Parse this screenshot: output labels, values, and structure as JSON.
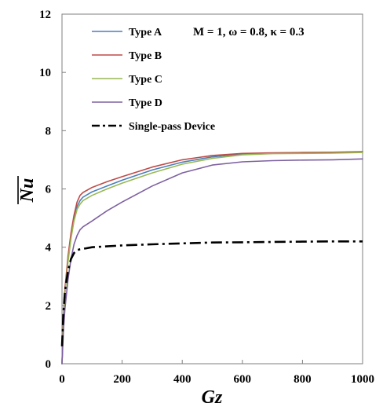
{
  "chart_data": {
    "type": "line",
    "xlabel": "Gz",
    "ylabel": "Nu",
    "xlim": [
      0,
      1000
    ],
    "ylim": [
      0,
      12
    ],
    "xticks": [
      "0",
      "200",
      "400",
      "600",
      "800",
      "1000"
    ],
    "yticks": [
      "0",
      "2",
      "4",
      "6",
      "8",
      "10",
      "12"
    ],
    "grid": false,
    "legend_position": "top-left",
    "annotation": "M = 1, ω = 0.8, κ = 0.3",
    "series": [
      {
        "name": "Type A",
        "color": "#4a7ebb",
        "dash": "solid",
        "x": [
          0,
          5,
          10,
          20,
          30,
          40,
          50,
          60,
          70,
          100,
          150,
          200,
          300,
          400,
          500,
          600,
          700,
          800,
          900,
          1000
        ],
        "y": [
          0,
          1.6,
          2.5,
          3.6,
          4.4,
          5.0,
          5.4,
          5.6,
          5.72,
          5.9,
          6.1,
          6.3,
          6.65,
          6.92,
          7.1,
          7.2,
          7.23,
          7.24,
          7.25,
          7.27
        ]
      },
      {
        "name": "Type B",
        "color": "#be4b48",
        "dash": "solid",
        "x": [
          0,
          5,
          10,
          20,
          30,
          40,
          50,
          60,
          70,
          100,
          150,
          200,
          300,
          400,
          500,
          600,
          700,
          800,
          900,
          1000
        ],
        "y": [
          0,
          1.7,
          2.6,
          3.7,
          4.5,
          5.1,
          5.55,
          5.78,
          5.88,
          6.05,
          6.25,
          6.42,
          6.75,
          7.0,
          7.15,
          7.22,
          7.24,
          7.25,
          7.26,
          7.28
        ]
      },
      {
        "name": "Type C",
        "color": "#98b954",
        "dash": "solid",
        "x": [
          0,
          5,
          10,
          20,
          30,
          40,
          50,
          60,
          70,
          100,
          150,
          200,
          300,
          400,
          500,
          600,
          700,
          800,
          900,
          1000
        ],
        "y": [
          0,
          1.5,
          2.4,
          3.5,
          4.3,
          4.9,
          5.3,
          5.48,
          5.6,
          5.78,
          6.0,
          6.2,
          6.55,
          6.85,
          7.05,
          7.17,
          7.21,
          7.22,
          7.23,
          7.25
        ]
      },
      {
        "name": "Type D",
        "color": "#7d60a0",
        "dash": "solid",
        "x": [
          0,
          5,
          10,
          20,
          30,
          40,
          50,
          60,
          70,
          100,
          150,
          200,
          300,
          400,
          500,
          600,
          700,
          800,
          900,
          1000
        ],
        "y": [
          0,
          1.2,
          1.9,
          2.9,
          3.6,
          4.1,
          4.4,
          4.6,
          4.7,
          4.9,
          5.25,
          5.55,
          6.1,
          6.55,
          6.82,
          6.93,
          6.97,
          6.99,
          7.0,
          7.03
        ]
      },
      {
        "name": "Single-pass Device",
        "color": "#000000",
        "dash": "dashdot",
        "x": [
          0,
          5,
          10,
          20,
          30,
          40,
          50,
          60,
          80,
          100,
          200,
          300,
          400,
          500,
          600,
          700,
          800,
          900,
          1000
        ],
        "y": [
          0.6,
          1.8,
          2.5,
          3.2,
          3.6,
          3.8,
          3.9,
          3.93,
          3.96,
          4.0,
          4.06,
          4.1,
          4.13,
          4.16,
          4.17,
          4.18,
          4.19,
          4.2,
          4.2
        ]
      }
    ]
  }
}
